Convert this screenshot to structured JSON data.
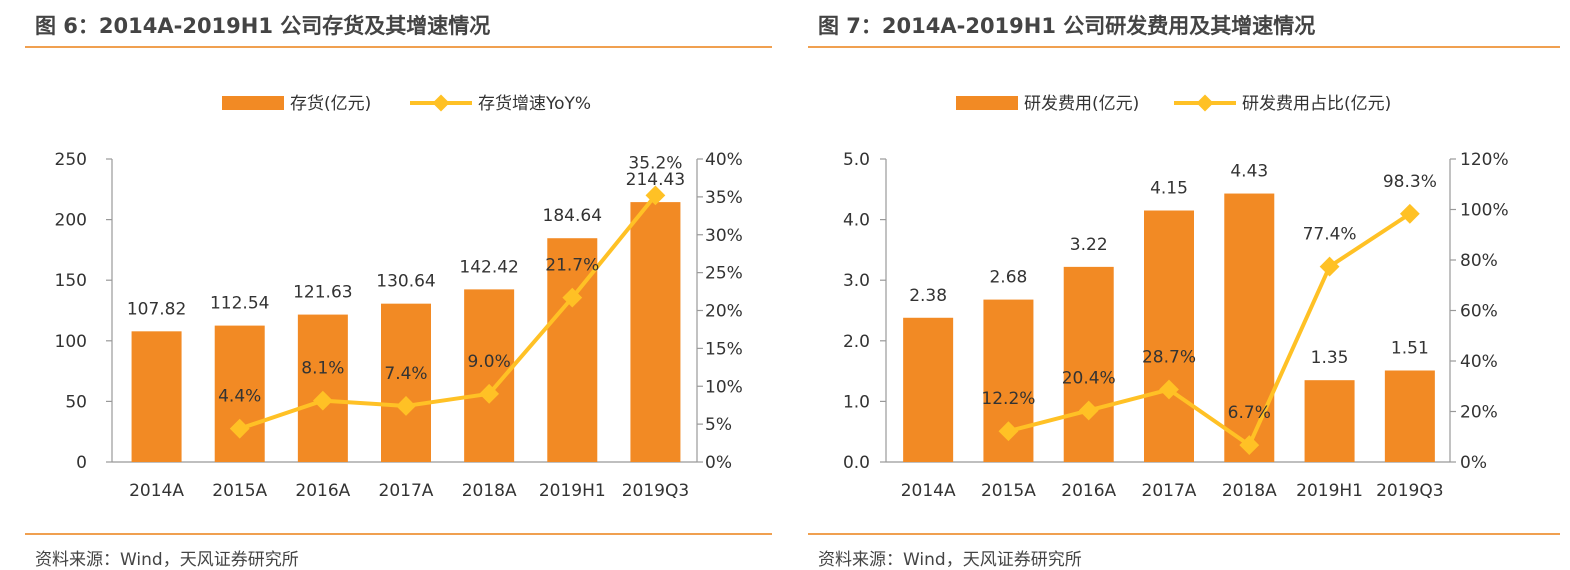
{
  "colors": {
    "bar": "#f28a24",
    "line": "#ffc125",
    "axis": "#999999",
    "rule": "#f0a050"
  },
  "panels": [
    {
      "title": "图 6：2014A-2019H1 公司存货及其增速情况",
      "source": "资料来源：Wind，天风证券研究所"
    },
    {
      "title": "图 7：2014A-2019H1 公司研发费用及其增速情况",
      "source": "资料来源：Wind，天风证券研究所"
    }
  ],
  "chart_data": [
    {
      "type": "bar",
      "categories": [
        "2014A",
        "2015A",
        "2016A",
        "2017A",
        "2018A",
        "2019H1",
        "2019Q3"
      ],
      "series": [
        {
          "name": "存货(亿元)",
          "type": "bar",
          "axis": "left",
          "values": [
            107.82,
            112.54,
            121.63,
            130.64,
            142.42,
            184.64,
            214.43
          ],
          "labels": [
            "107.82",
            "112.54",
            "121.63",
            "130.64",
            "142.42",
            "184.64",
            "214.43"
          ]
        },
        {
          "name": "存货增速YoY%",
          "type": "line",
          "axis": "right",
          "values": [
            null,
            4.4,
            8.1,
            7.4,
            9.0,
            21.7,
            35.2
          ],
          "labels": [
            "",
            "4.4%",
            "8.1%",
            "7.4%",
            "9.0%",
            "21.7%",
            "35.2%"
          ]
        }
      ],
      "y_left": {
        "min": 0,
        "max": 250,
        "ticks": [
          "0",
          "50",
          "100",
          "150",
          "200",
          "250"
        ]
      },
      "y_right": {
        "min": 0,
        "max": 40,
        "ticks": [
          "0%",
          "5%",
          "10%",
          "15%",
          "20%",
          "25%",
          "30%",
          "35%",
          "40%"
        ]
      },
      "legend": "top-center"
    },
    {
      "type": "bar",
      "categories": [
        "2014A",
        "2015A",
        "2016A",
        "2017A",
        "2018A",
        "2019H1",
        "2019Q3"
      ],
      "series": [
        {
          "name": "研发费用(亿元)",
          "type": "bar",
          "axis": "left",
          "values": [
            2.38,
            2.68,
            3.22,
            4.15,
            4.43,
            1.35,
            1.51
          ],
          "labels": [
            "2.38",
            "2.68",
            "3.22",
            "4.15",
            "4.43",
            "1.35",
            "1.51"
          ]
        },
        {
          "name": "研发费用占比(亿元)",
          "type": "line",
          "axis": "right",
          "values": [
            null,
            12.2,
            20.4,
            28.7,
            6.7,
            77.4,
            98.3
          ],
          "labels": [
            "",
            "12.2%",
            "20.4%",
            "28.7%",
            "6.7%",
            "77.4%",
            "98.3%"
          ]
        }
      ],
      "y_left": {
        "min": 0,
        "max": 5,
        "ticks": [
          "0.0",
          "1.0",
          "2.0",
          "3.0",
          "4.0",
          "5.0"
        ]
      },
      "y_right": {
        "min": 0,
        "max": 120,
        "ticks": [
          "0%",
          "20%",
          "40%",
          "60%",
          "80%",
          "100%",
          "120%"
        ]
      },
      "legend": "top-center"
    }
  ]
}
